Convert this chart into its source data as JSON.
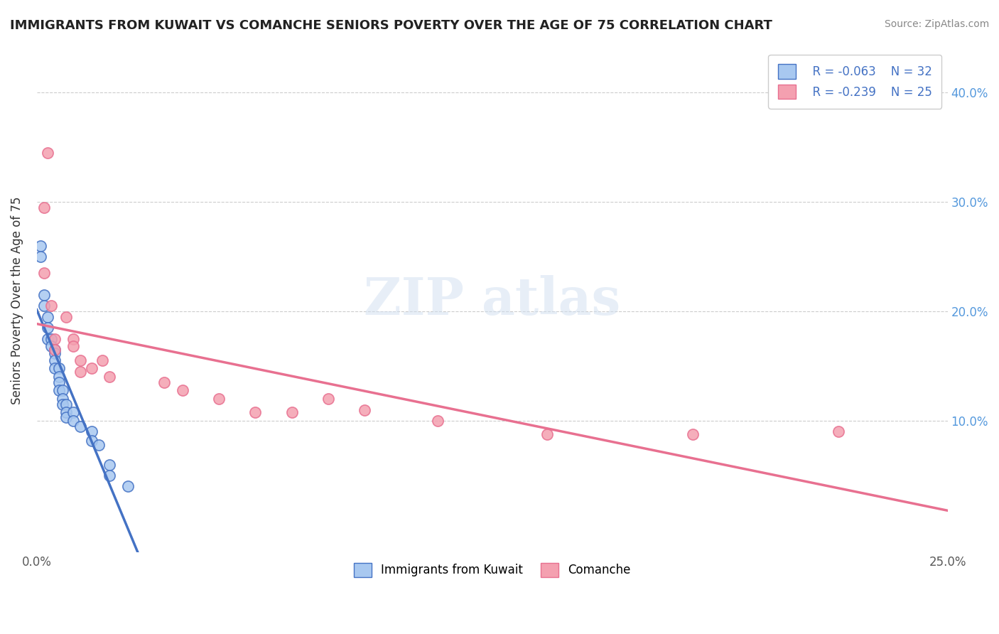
{
  "title": "IMMIGRANTS FROM KUWAIT VS COMANCHE SENIORS POVERTY OVER THE AGE OF 75 CORRELATION CHART",
  "source": "Source: ZipAtlas.com",
  "xlabel": "",
  "ylabel": "Seniors Poverty Over the Age of 75",
  "xlim": [
    0.0,
    0.25
  ],
  "ylim": [
    -0.02,
    0.44
  ],
  "xticks": [
    0.0,
    0.05,
    0.1,
    0.15,
    0.2,
    0.25
  ],
  "xtick_labels": [
    "0.0%",
    "",
    "",
    "",
    "",
    "25.0%"
  ],
  "ytick_positions": [
    0.0,
    0.1,
    0.2,
    0.3,
    0.4
  ],
  "ytick_labels": [
    "",
    "10.0%",
    "20.0%",
    "30.0%",
    "40.0%"
  ],
  "legend_r1": "R = -0.063",
  "legend_n1": "N = 32",
  "legend_r2": "R = -0.239",
  "legend_n2": "N = 25",
  "legend_label1": "Immigrants from Kuwait",
  "legend_label2": "Comanche",
  "color_blue": "#a8c8f0",
  "color_pink": "#f4a0b0",
  "line_blue_solid": "#4472c4",
  "line_blue_dashed": "#a8c8f0",
  "line_pink_solid": "#e87090",
  "watermark": "ZIPatlas",
  "blue_points": [
    [
      0.001,
      0.26
    ],
    [
      0.001,
      0.25
    ],
    [
      0.002,
      0.215
    ],
    [
      0.002,
      0.205
    ],
    [
      0.003,
      0.195
    ],
    [
      0.003,
      0.185
    ],
    [
      0.003,
      0.175
    ],
    [
      0.004,
      0.175
    ],
    [
      0.004,
      0.168
    ],
    [
      0.005,
      0.165
    ],
    [
      0.005,
      0.162
    ],
    [
      0.005,
      0.155
    ],
    [
      0.005,
      0.148
    ],
    [
      0.006,
      0.148
    ],
    [
      0.006,
      0.14
    ],
    [
      0.006,
      0.135
    ],
    [
      0.006,
      0.128
    ],
    [
      0.007,
      0.128
    ],
    [
      0.007,
      0.12
    ],
    [
      0.007,
      0.115
    ],
    [
      0.008,
      0.115
    ],
    [
      0.008,
      0.108
    ],
    [
      0.008,
      0.103
    ],
    [
      0.01,
      0.108
    ],
    [
      0.01,
      0.1
    ],
    [
      0.012,
      0.095
    ],
    [
      0.015,
      0.09
    ],
    [
      0.015,
      0.082
    ],
    [
      0.017,
      0.078
    ],
    [
      0.02,
      0.06
    ],
    [
      0.02,
      0.05
    ],
    [
      0.025,
      0.04
    ]
  ],
  "pink_points": [
    [
      0.002,
      0.295
    ],
    [
      0.002,
      0.235
    ],
    [
      0.003,
      0.345
    ],
    [
      0.004,
      0.205
    ],
    [
      0.005,
      0.175
    ],
    [
      0.005,
      0.165
    ],
    [
      0.008,
      0.195
    ],
    [
      0.01,
      0.175
    ],
    [
      0.01,
      0.168
    ],
    [
      0.012,
      0.155
    ],
    [
      0.012,
      0.145
    ],
    [
      0.015,
      0.148
    ],
    [
      0.018,
      0.155
    ],
    [
      0.02,
      0.14
    ],
    [
      0.035,
      0.135
    ],
    [
      0.04,
      0.128
    ],
    [
      0.05,
      0.12
    ],
    [
      0.06,
      0.108
    ],
    [
      0.07,
      0.108
    ],
    [
      0.08,
      0.12
    ],
    [
      0.09,
      0.11
    ],
    [
      0.11,
      0.1
    ],
    [
      0.14,
      0.088
    ],
    [
      0.18,
      0.088
    ],
    [
      0.22,
      0.09
    ]
  ]
}
